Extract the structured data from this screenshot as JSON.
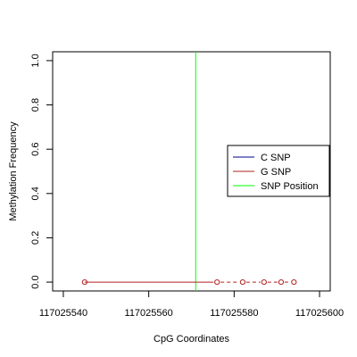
{
  "chart_data": {
    "type": "line",
    "title": "",
    "xlabel": "CpG Coordinates",
    "ylabel": "Methylation Frequency",
    "xlim": [
      117025537.5,
      117025602.5
    ],
    "ylim": [
      -0.04,
      1.04
    ],
    "x_ticks": [
      117025540,
      117025560,
      117025580,
      117025600
    ],
    "x_tick_labels": [
      "117025540",
      "117025560",
      "117025580",
      "117025600"
    ],
    "y_ticks": [
      0.0,
      0.2,
      0.4,
      0.6,
      0.8,
      1.0
    ],
    "y_tick_labels": [
      "0.0",
      "0.2",
      "0.4",
      "0.6",
      "0.8",
      "1.0"
    ],
    "grid": false,
    "legend_position": "right",
    "series": [
      {
        "name": "C SNP",
        "color": "#00008b",
        "x": [],
        "y": []
      },
      {
        "name": "G SNP",
        "color": "#b22222",
        "line_style": "dashed",
        "marker": "open-circle",
        "x": [
          117025545,
          117025576,
          117025582,
          117025587,
          117025591,
          117025594
        ],
        "y": [
          0,
          0,
          0,
          0,
          0,
          0
        ]
      }
    ],
    "snp_position": {
      "name": "SNP Position",
      "color": "#00ff00",
      "x": 117025571
    }
  }
}
